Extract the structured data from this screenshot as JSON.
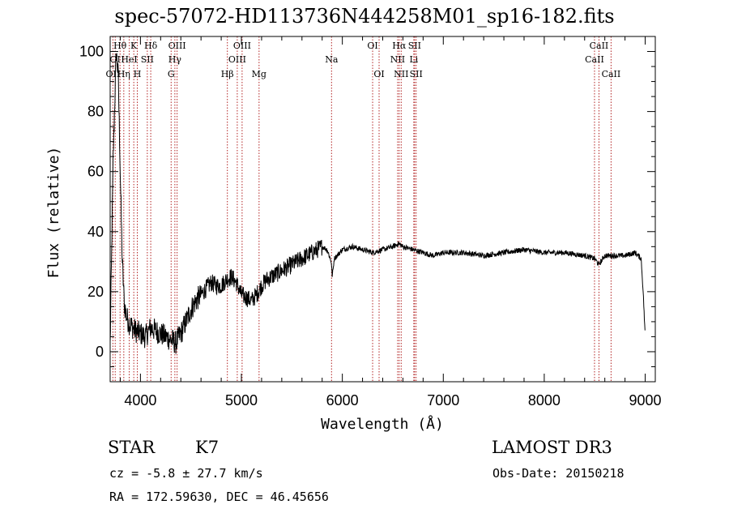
{
  "chart_data": {
    "type": "line",
    "title": "spec-57072-HD113736N444258M01_sp16-182.fits",
    "xlabel": "Wavelength (Å)",
    "ylabel": "Flux (relative)",
    "xlim": [
      3700,
      9100
    ],
    "ylim": [
      -10,
      105
    ],
    "xticks": [
      4000,
      5000,
      6000,
      7000,
      8000,
      9000
    ],
    "yticks": [
      0,
      20,
      40,
      60,
      80,
      100
    ],
    "xtick_labels": [
      "4000",
      "5000",
      "6000",
      "7000",
      "8000",
      "9000"
    ],
    "ytick_labels": [
      "0",
      "20",
      "40",
      "60",
      "80",
      "100"
    ],
    "spectrum": {
      "name": "flux",
      "x": [
        3700,
        3730,
        3760,
        3780,
        3800,
        3820,
        3840,
        3860,
        3880,
        3900,
        3950,
        4000,
        4050,
        4100,
        4150,
        4200,
        4250,
        4300,
        4350,
        4400,
        4450,
        4500,
        4550,
        4600,
        4650,
        4700,
        4750,
        4800,
        4850,
        4900,
        4950,
        5000,
        5050,
        5100,
        5150,
        5200,
        5250,
        5300,
        5400,
        5500,
        5600,
        5700,
        5800,
        5850,
        5890,
        5900,
        5920,
        6000,
        6100,
        6200,
        6300,
        6400,
        6500,
        6560,
        6600,
        6700,
        6800,
        6900,
        7000,
        7200,
        7400,
        7600,
        7800,
        8000,
        8200,
        8400,
        8500,
        8542,
        8600,
        8700,
        8800,
        8900,
        8960,
        8980,
        9000
      ],
      "y": [
        2,
        65,
        100,
        92,
        60,
        30,
        16,
        12,
        10,
        9,
        7,
        6,
        5,
        8,
        7,
        6,
        5,
        4,
        3,
        6,
        10,
        14,
        17,
        19,
        21,
        23,
        22,
        22,
        24,
        25,
        23,
        19,
        18,
        17,
        19,
        22,
        24,
        25,
        27,
        29,
        31,
        33,
        35,
        34,
        30,
        25,
        31,
        34,
        35,
        34,
        33,
        34,
        35,
        36,
        35,
        34,
        33,
        32,
        33,
        33,
        32,
        33,
        34,
        33,
        33,
        32,
        31,
        29,
        32,
        32,
        32,
        33,
        31,
        20,
        5
      ]
    },
    "lines": [
      {
        "wavelength": 3727,
        "label": "OII",
        "row": 2
      },
      {
        "wavelength": 3750,
        "label": "OI",
        "row": 1
      },
      {
        "wavelength": 3798,
        "label": "Hθ",
        "row": 0
      },
      {
        "wavelength": 3835,
        "label": "Hη",
        "row": 2
      },
      {
        "wavelength": 3889,
        "label": "HeI",
        "row": 1
      },
      {
        "wavelength": 3934,
        "label": "K",
        "row": 0
      },
      {
        "wavelength": 3969,
        "label": "H",
        "row": 2
      },
      {
        "wavelength": 4068,
        "label": "SII",
        "row": 1
      },
      {
        "wavelength": 4102,
        "label": "Hδ",
        "row": 0
      },
      {
        "wavelength": 4304,
        "label": "G",
        "row": 2
      },
      {
        "wavelength": 4341,
        "label": "Hγ",
        "row": 1
      },
      {
        "wavelength": 4363,
        "label": "OIII",
        "row": 0
      },
      {
        "wavelength": 4861,
        "label": "Hβ",
        "row": 2
      },
      {
        "wavelength": 4959,
        "label": "OIII",
        "row": 1
      },
      {
        "wavelength": 5007,
        "label": "OIII",
        "row": 0
      },
      {
        "wavelength": 5175,
        "label": "Mg",
        "row": 2
      },
      {
        "wavelength": 5893,
        "label": "Na",
        "row": 1
      },
      {
        "wavelength": 6300,
        "label": "OI",
        "row": 0
      },
      {
        "wavelength": 6364,
        "label": "OI",
        "row": 2
      },
      {
        "wavelength": 6548,
        "label": "NII",
        "row": 1
      },
      {
        "wavelength": 6563,
        "label": "Hα",
        "row": 0
      },
      {
        "wavelength": 6583,
        "label": "NII",
        "row": 2
      },
      {
        "wavelength": 6708,
        "label": "Li",
        "row": 1
      },
      {
        "wavelength": 6716,
        "label": "SII",
        "row": 0
      },
      {
        "wavelength": 6731,
        "label": "SII",
        "row": 2
      },
      {
        "wavelength": 8498,
        "label": "CaII",
        "row": 1
      },
      {
        "wavelength": 8542,
        "label": "CaII",
        "row": 0
      },
      {
        "wavelength": 8662,
        "label": "CaII",
        "row": 2
      }
    ]
  },
  "info": {
    "class": "STAR",
    "subclass": "K7",
    "redshift": "cz = -5.8 ± 27.7 km/s",
    "coords": "RA = 172.59630, DEC =  46.45656",
    "survey": "LAMOST DR3",
    "obs_date": "Obs-Date: 20150218"
  },
  "colors": {
    "spectrum": "#000000",
    "line_markers": "#b22222",
    "background": "#ffffff"
  }
}
